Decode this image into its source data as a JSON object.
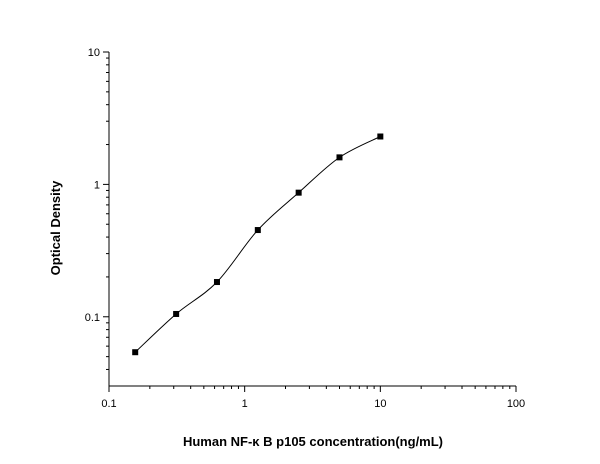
{
  "chart_data": {
    "type": "scatter",
    "title": "",
    "xlabel": "Human NF-κ B p105 concentration(ng/mL)",
    "ylabel": "Optical Density",
    "x_scale": "log",
    "y_scale": "log",
    "xlim": [
      0.1,
      100
    ],
    "ylim": [
      0.03,
      10
    ],
    "x_ticks": [
      {
        "value": 0.1,
        "label": "0.1"
      },
      {
        "value": 1,
        "label": "1"
      },
      {
        "value": 10,
        "label": "10"
      },
      {
        "value": 100,
        "label": "100"
      }
    ],
    "y_ticks": [
      {
        "value": 0.1,
        "label": "0.1"
      },
      {
        "value": 1,
        "label": "1"
      },
      {
        "value": 10,
        "label": "10"
      }
    ],
    "grid": false,
    "legend": "none",
    "series": [
      {
        "x": [
          0.156,
          0.3125,
          0.625,
          1.25,
          2.5,
          5,
          10
        ],
        "y": [
          0.054,
          0.105,
          0.183,
          0.452,
          0.866,
          1.6,
          2.3
        ],
        "marker": "square",
        "fit_curve": true
      }
    ],
    "colors": {
      "marker": "#000000",
      "line": "#000000",
      "axis": "#000000"
    }
  }
}
